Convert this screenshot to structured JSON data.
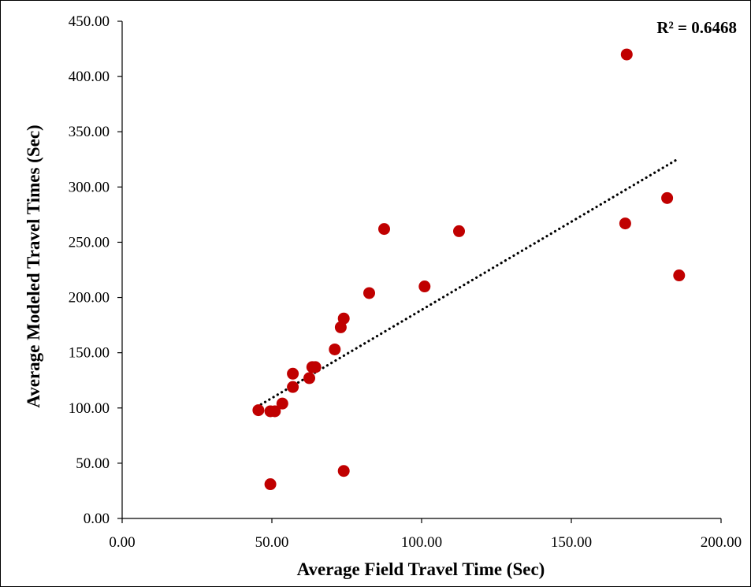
{
  "chart_data": {
    "type": "scatter",
    "title": "",
    "xlabel": "Average Field Travel Time (Sec)",
    "ylabel": "Average Modeled Travel Times (Sec)",
    "xlim": [
      0,
      200
    ],
    "ylim": [
      0,
      450
    ],
    "x_ticks": [
      "0.00",
      "50.00",
      "100.00",
      "150.00",
      "200.00"
    ],
    "y_ticks": [
      "0.00",
      "50.00",
      "100.00",
      "150.00",
      "200.00",
      "250.00",
      "300.00",
      "350.00",
      "400.00",
      "450.00"
    ],
    "grid": false,
    "legend": "none",
    "series": [
      {
        "color": "#c00000",
        "points": [
          {
            "x": 45.5,
            "y": 98
          },
          {
            "x": 49.5,
            "y": 97
          },
          {
            "x": 51.0,
            "y": 97
          },
          {
            "x": 53.5,
            "y": 104
          },
          {
            "x": 49.5,
            "y": 31
          },
          {
            "x": 57.0,
            "y": 119
          },
          {
            "x": 57.0,
            "y": 131
          },
          {
            "x": 62.5,
            "y": 127
          },
          {
            "x": 63.5,
            "y": 137
          },
          {
            "x": 64.5,
            "y": 137
          },
          {
            "x": 71.0,
            "y": 153
          },
          {
            "x": 73.0,
            "y": 173
          },
          {
            "x": 74.0,
            "y": 181
          },
          {
            "x": 74.0,
            "y": 43
          },
          {
            "x": 82.5,
            "y": 204
          },
          {
            "x": 87.5,
            "y": 262
          },
          {
            "x": 101.0,
            "y": 210
          },
          {
            "x": 112.5,
            "y": 260
          },
          {
            "x": 168.0,
            "y": 267
          },
          {
            "x": 168.5,
            "y": 420
          },
          {
            "x": 182.0,
            "y": 290
          },
          {
            "x": 186.0,
            "y": 220
          }
        ]
      }
    ],
    "trendline": {
      "style": "dotted",
      "color": "#000000",
      "x": [
        45,
        186
      ],
      "y": [
        101,
        326
      ]
    },
    "annotation": "R² = 0.6468"
  }
}
